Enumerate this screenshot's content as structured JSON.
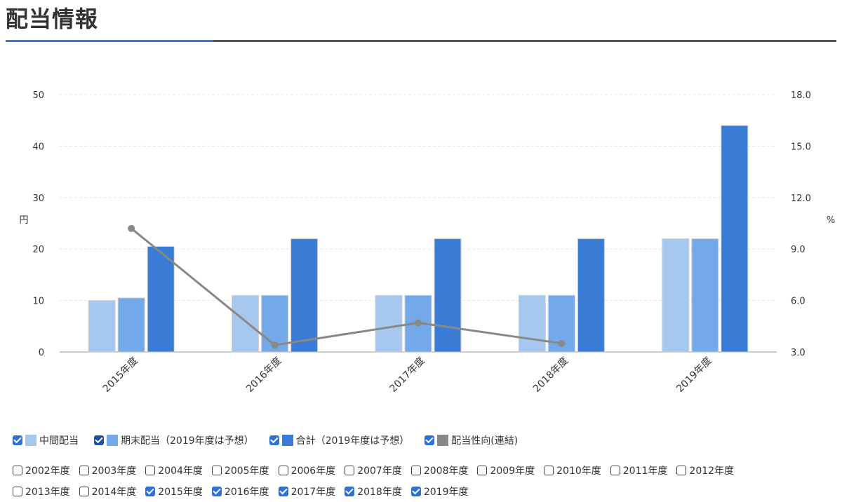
{
  "page": {
    "title": "配当情報"
  },
  "colors": {
    "accent": "#3a7bd5",
    "interim": "#a7c8ee",
    "year_end": "#73a9e8",
    "total": "#3a7bd5",
    "payout": "#888888"
  },
  "chart_data": {
    "type": "bar",
    "categories": [
      "2015年度",
      "2016年度",
      "2017年度",
      "2018年度",
      "2019年度"
    ],
    "series": [
      {
        "name": "中間配当",
        "type": "bar",
        "axis": "left",
        "values": [
          10,
          11,
          11,
          11,
          22
        ]
      },
      {
        "name": "期末配当（2019年度は予想）",
        "type": "bar",
        "axis": "left",
        "values": [
          10.5,
          11,
          11,
          11,
          22
        ]
      },
      {
        "name": "合計（2019年度は予想）",
        "type": "bar",
        "axis": "left",
        "values": [
          20.5,
          22,
          22,
          22,
          44
        ]
      },
      {
        "name": "配当性向(連結)",
        "type": "line",
        "axis": "right",
        "values": [
          10.2,
          3.4,
          4.7,
          3.5,
          null
        ]
      }
    ],
    "ylabel": "円",
    "y2label": "%",
    "ylim": [
      0,
      50
    ],
    "y2lim": [
      3,
      18
    ],
    "yticks": [
      "0",
      "10",
      "20",
      "30",
      "40",
      "50"
    ],
    "y2ticks": [
      "3.0",
      "6.0",
      "9.0",
      "12.0",
      "15.0",
      "18.0"
    ],
    "grid": true,
    "legend_position": "bottom"
  },
  "legend": {
    "series_items": [
      {
        "label": "中間配当",
        "checked": true
      },
      {
        "label": "期末配当（2019年度は予想）",
        "checked": true
      },
      {
        "label": "合計（2019年度は予想）",
        "checked": true
      },
      {
        "label": "配当性向(連結)",
        "checked": true
      }
    ],
    "years_row1": [
      {
        "label": "2002年度",
        "checked": false
      },
      {
        "label": "2003年度",
        "checked": false
      },
      {
        "label": "2004年度",
        "checked": false
      },
      {
        "label": "2005年度",
        "checked": false
      },
      {
        "label": "2006年度",
        "checked": false
      },
      {
        "label": "2007年度",
        "checked": false
      },
      {
        "label": "2008年度",
        "checked": false
      },
      {
        "label": "2009年度",
        "checked": false
      },
      {
        "label": "2010年度",
        "checked": false
      },
      {
        "label": "2011年度",
        "checked": false
      },
      {
        "label": "2012年度",
        "checked": false
      }
    ],
    "years_row2": [
      {
        "label": "2013年度",
        "checked": false
      },
      {
        "label": "2014年度",
        "checked": false
      },
      {
        "label": "2015年度",
        "checked": true
      },
      {
        "label": "2016年度",
        "checked": true
      },
      {
        "label": "2017年度",
        "checked": true
      },
      {
        "label": "2018年度",
        "checked": true
      },
      {
        "label": "2019年度",
        "checked": true
      }
    ]
  }
}
